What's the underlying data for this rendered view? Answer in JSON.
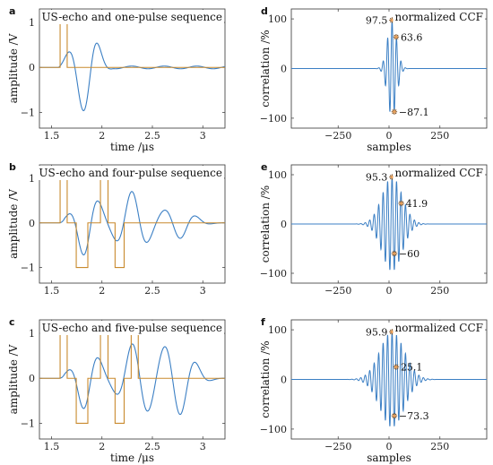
{
  "figure": {
    "colors": {
      "echo": "#3b7fc4",
      "pulse": "#c98a2e",
      "marker_fill": "#e9a05a",
      "marker_stroke": "#7a4a1a"
    }
  },
  "chart_data": [
    {
      "id": "a",
      "type": "line",
      "panel_label": "a",
      "title": "US-echo and one-pulse sequence",
      "xlabel": "time /μs",
      "ylabel": "amplitude /V",
      "xlim": [
        1.38,
        3.22
      ],
      "ylim": [
        -1.35,
        1.3
      ],
      "xticks": [
        1.5,
        2,
        2.5,
        3
      ],
      "xtick_labels": [
        "1.5",
        "2",
        "2.5",
        "3"
      ],
      "yticks": [
        -1,
        0,
        1
      ],
      "ytick_labels": [
        "−1",
        "0",
        "1"
      ],
      "series": [
        {
          "role": "echo",
          "type": "damped_sine",
          "start": 1.57,
          "end": 3.22,
          "freq": 3.1,
          "envelope": {
            "peak_time": 1.85,
            "rise": 0.18,
            "decay": 0.14,
            "tail": 0.03
          },
          "amplitude": 1.0,
          "phase": 0.0
        },
        {
          "role": "pulse",
          "type": "pulse_train",
          "baseline": 0,
          "segments": [
            {
              "from": 1.585,
              "to": 1.655,
              "level": 1
            }
          ]
        }
      ]
    },
    {
      "id": "d",
      "type": "line",
      "panel_label": "d",
      "title": "normalized CCF",
      "xlabel": "samples",
      "ylabel": "correlation /%",
      "xlim": [
        -480,
        480
      ],
      "ylim": [
        -120,
        120
      ],
      "xticks": [
        -250,
        0,
        250
      ],
      "xtick_labels": [
        "−250",
        "0",
        "250"
      ],
      "yticks": [
        -100,
        0,
        100
      ],
      "ytick_labels": [
        "−100",
        "0",
        "100"
      ],
      "series": [
        {
          "role": "ccf",
          "type": "ccf",
          "center": 15,
          "peak": 97.5,
          "period": 22,
          "env_width": 32
        }
      ],
      "annotations": [
        {
          "label": "97.5",
          "x": 15,
          "y": 97.5,
          "side": "left"
        },
        {
          "label": "63.6",
          "x": 35,
          "y": 63.6,
          "side": "right"
        },
        {
          "label": "−87.1",
          "x": 26,
          "y": -87.1,
          "side": "right"
        }
      ]
    },
    {
      "id": "b",
      "type": "line",
      "panel_label": "b",
      "title": "US-echo and four-pulse sequence",
      "xlabel": "",
      "ylabel": "amplitude /V",
      "xlim": [
        1.38,
        3.22
      ],
      "ylim": [
        -1.35,
        1.3
      ],
      "xticks": [
        1.5,
        2,
        2.5,
        3
      ],
      "xtick_labels": [
        "1.5",
        "2",
        "2.5",
        "3"
      ],
      "yticks": [
        -1,
        0,
        1
      ],
      "ytick_labels": [
        "−1",
        "0",
        "1"
      ],
      "series": [
        {
          "role": "echo",
          "type": "multi_echo",
          "start": 1.57,
          "end": 3.22,
          "freq": 3.1,
          "bursts": [
            {
              "t": 1.85,
              "a": 0.75,
              "w": 0.16
            },
            {
              "t": 2.3,
              "a": 0.7,
              "w": 0.2
            },
            {
              "t": 2.75,
              "a": 0.35,
              "w": 0.2
            }
          ]
        },
        {
          "role": "pulse",
          "type": "pulse_train",
          "baseline": 0,
          "segments": [
            {
              "from": 1.585,
              "to": 1.655,
              "level": 1
            },
            {
              "from": 1.745,
              "to": 1.86,
              "level": -1
            },
            {
              "from": 1.985,
              "to": 2.06,
              "level": 1
            },
            {
              "from": 2.13,
              "to": 2.22,
              "level": -1
            }
          ]
        }
      ]
    },
    {
      "id": "e",
      "type": "line",
      "panel_label": "e",
      "title": "normalized CCF",
      "xlabel": "",
      "ylabel": "correlation /%",
      "xlim": [
        -480,
        480
      ],
      "ylim": [
        -120,
        120
      ],
      "xticks": [
        -250,
        0,
        250
      ],
      "xtick_labels": [
        "−250",
        "0",
        "250"
      ],
      "yticks": [
        -100,
        0,
        100
      ],
      "ytick_labels": [
        "−100",
        "0",
        "100"
      ],
      "series": [
        {
          "role": "ccf",
          "type": "ccf",
          "center": 15,
          "peak": 95.3,
          "period": 22,
          "env_width": 70
        }
      ],
      "annotations": [
        {
          "label": "95.3",
          "x": 15,
          "y": 95.3,
          "side": "left"
        },
        {
          "label": "41.9",
          "x": 60,
          "y": 41.9,
          "side": "right"
        },
        {
          "label": "−60",
          "x": 26,
          "y": -60,
          "side": "right"
        }
      ]
    },
    {
      "id": "c",
      "type": "line",
      "panel_label": "c",
      "title": "US-echo and five-pulse sequence",
      "xlabel": "time /μs",
      "ylabel": "amplitude /V",
      "xlim": [
        1.38,
        3.22
      ],
      "ylim": [
        -1.35,
        1.3
      ],
      "xticks": [
        1.5,
        2,
        2.5,
        3
      ],
      "xtick_labels": [
        "1.5",
        "2",
        "2.5",
        "3"
      ],
      "yticks": [
        -1,
        0,
        1
      ],
      "ytick_labels": [
        "−1",
        "0",
        "1"
      ],
      "series": [
        {
          "role": "echo",
          "type": "multi_echo",
          "start": 1.57,
          "end": 3.22,
          "freq": 3.1,
          "bursts": [
            {
              "t": 1.85,
              "a": 0.7,
              "w": 0.16
            },
            {
              "t": 2.35,
              "a": 0.8,
              "w": 0.22
            },
            {
              "t": 2.75,
              "a": 0.8,
              "w": 0.2
            }
          ]
        },
        {
          "role": "pulse",
          "type": "pulse_train",
          "baseline": 0,
          "segments": [
            {
              "from": 1.585,
              "to": 1.655,
              "level": 1
            },
            {
              "from": 1.745,
              "to": 1.86,
              "level": -1
            },
            {
              "from": 1.985,
              "to": 2.06,
              "level": 1
            },
            {
              "from": 2.13,
              "to": 2.22,
              "level": -1
            },
            {
              "from": 2.29,
              "to": 2.36,
              "level": 1
            }
          ]
        }
      ]
    },
    {
      "id": "f",
      "type": "line",
      "panel_label": "f",
      "title": "normalized CCF",
      "xlabel": "samples",
      "ylabel": "correlation /%",
      "xlim": [
        -480,
        480
      ],
      "ylim": [
        -120,
        120
      ],
      "xticks": [
        -250,
        0,
        250
      ],
      "xtick_labels": [
        "−250",
        "0",
        "250"
      ],
      "yticks": [
        -100,
        0,
        100
      ],
      "ytick_labels": [
        "−100",
        "0",
        "100"
      ],
      "series": [
        {
          "role": "ccf",
          "type": "ccf",
          "center": 15,
          "peak": 95.9,
          "period": 22,
          "env_width": 85
        }
      ],
      "annotations": [
        {
          "label": "95.9",
          "x": 15,
          "y": 95.9,
          "side": "left"
        },
        {
          "label": "25.1",
          "x": 35,
          "y": 25.1,
          "side": "right"
        },
        {
          "label": "−73.3",
          "x": 26,
          "y": -73.3,
          "side": "right"
        }
      ]
    }
  ]
}
